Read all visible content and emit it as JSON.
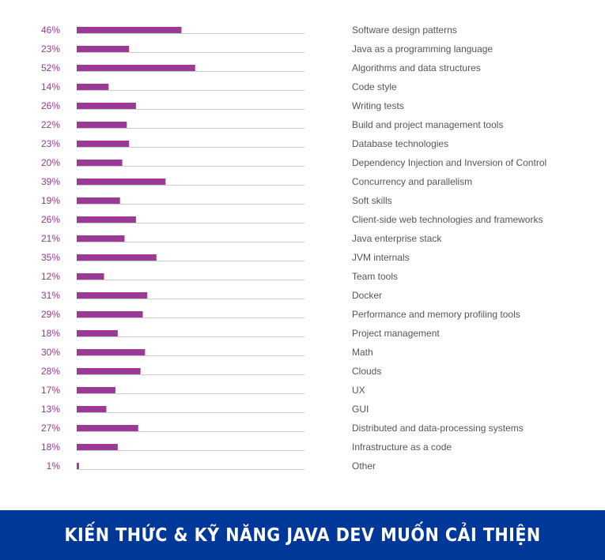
{
  "chart_data": {
    "type": "bar",
    "orientation": "horizontal",
    "categories": [
      "Software design patterns",
      "Java as a programming language",
      "Algorithms and data structures",
      "Code style",
      "Writing tests",
      "Build and project management tools",
      "Database technologies",
      "Dependency Injection and Inversion of Control",
      "Concurrency and parallelism",
      "Soft skills",
      "Client-side web technologies and frameworks",
      "Java enterprise stack",
      "JVM internals",
      "Team tools",
      "Docker",
      "Performance and memory profiling tools",
      "Project management",
      "Math",
      "Clouds",
      "UX",
      "GUI",
      "Distributed and data-processing systems",
      "Infrastructure as a code",
      "Other"
    ],
    "values": [
      46,
      23,
      52,
      14,
      26,
      22,
      23,
      20,
      39,
      19,
      26,
      21,
      35,
      12,
      31,
      29,
      18,
      30,
      28,
      17,
      13,
      27,
      18,
      1
    ],
    "value_suffix": "%",
    "xlim": [
      0,
      100
    ],
    "grid": false,
    "bar_color": "#9b3a96",
    "track_color": "#cccccc"
  },
  "banner": {
    "title": "KIẾN THỨC & KỸ NĂNG JAVA DEV MUỐN CẢI THIỆN",
    "color": "#003899"
  }
}
